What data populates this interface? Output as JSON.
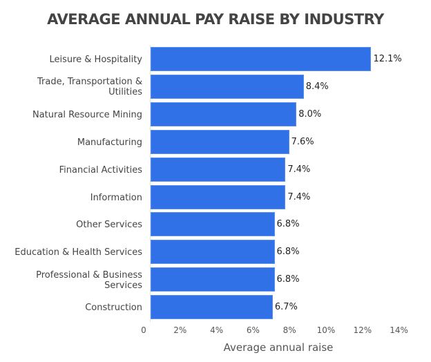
{
  "chart_data": {
    "type": "bar",
    "orientation": "horizontal",
    "title": "AVERAGE ANNUAL PAY RAISE BY INDUSTRY",
    "xlabel": "Average annual raise",
    "ylabel": "",
    "categories": [
      "Leisure & Hospitality",
      "Trade, Transportation & Utilities",
      "Natural Resource Mining",
      "Manufacturing",
      "Financial Activities",
      "Information",
      "Other Services",
      "Education & Health Services",
      "Professional & Business Services",
      "Construction"
    ],
    "values": [
      12.1,
      8.4,
      8.0,
      7.6,
      7.4,
      7.4,
      6.8,
      6.8,
      6.8,
      6.7
    ],
    "value_labels": [
      "12.1%",
      "8.4%",
      "8.0%",
      "7.6%",
      "7.4%",
      "7.4%",
      "6.8%",
      "6.8%",
      "6.8%",
      "6.7%"
    ],
    "xlim": [
      0,
      14
    ],
    "x_ticks": [
      "0",
      "2%",
      "4%",
      "6%",
      "8%",
      "10%",
      "12%",
      "14%"
    ],
    "grid": false,
    "legend": "none",
    "bar_color": "#3171e8"
  },
  "label_lines": [
    [
      "Leisure & Hospitality"
    ],
    [
      "Trade, Transportation &",
      "Utilities"
    ],
    [
      "Natural Resource Mining"
    ],
    [
      "Manufacturing"
    ],
    [
      "Financial Activities"
    ],
    [
      "Information"
    ],
    [
      "Other Services"
    ],
    [
      "Education & Health Services"
    ],
    [
      "Professional & Business",
      "Services"
    ],
    [
      "Construction"
    ]
  ]
}
